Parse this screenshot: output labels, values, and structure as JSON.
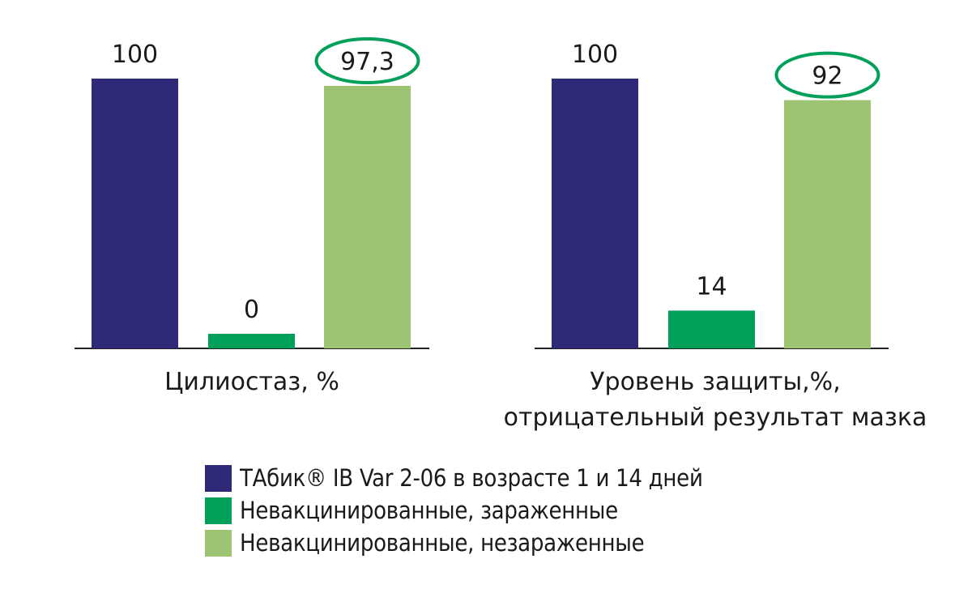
{
  "chart_data": [
    {
      "type": "bar",
      "categories": [
        "ТАбик® IB Var 2-06 в возрасте 1 и 14 дней",
        "Невакцинированные, зараженные",
        "Невакцинированные, незараженные"
      ],
      "values": [
        100,
        0,
        97.3
      ],
      "value_labels": [
        "100",
        "0",
        "97,3"
      ],
      "highlighted_index": 2,
      "xlabel": "Цилиостаз, %",
      "ylim": [
        0,
        100
      ]
    },
    {
      "type": "bar",
      "categories": [
        "ТАбик® IB Var 2-06 в возрасте 1 и 14 дней",
        "Невакцинированные, зараженные",
        "Невакцинированные, незараженные"
      ],
      "values": [
        100,
        14,
        92
      ],
      "value_labels": [
        "100",
        "14",
        "92"
      ],
      "highlighted_index": 2,
      "xlabel_lines": [
        "Уровень защиты,%,",
        "отрицательный результат мазка"
      ],
      "ylim": [
        0,
        100
      ]
    }
  ],
  "legend": [
    {
      "label": "ТАбик® IB Var 2-06 в возрасте 1 и 14 дней",
      "color": "#2e2a78"
    },
    {
      "label": "Невакцинированные, зараженные",
      "color": "#00a05a"
    },
    {
      "label": "Невакцинированные, незараженные",
      "color": "#9cc473"
    }
  ],
  "colors": {
    "series": [
      "#2e2a78",
      "#00a05a",
      "#9cc473"
    ],
    "highlight_outline": "#00a05a",
    "axis": "#222222"
  }
}
